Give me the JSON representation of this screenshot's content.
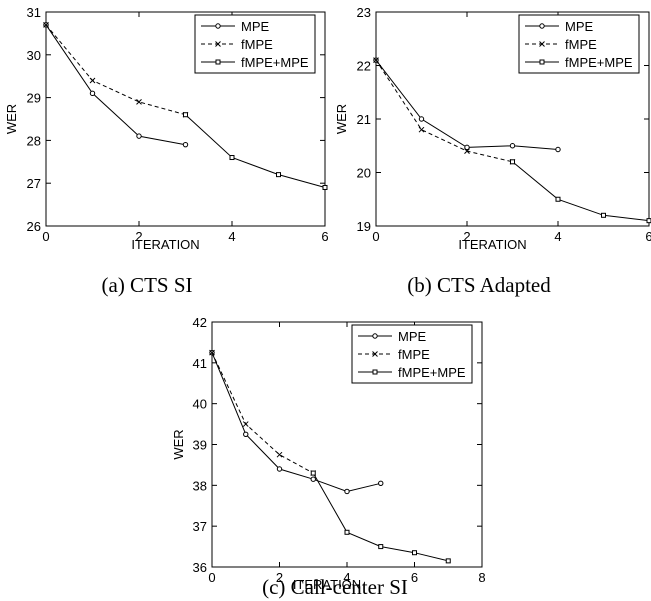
{
  "chart_data": [
    {
      "type": "line",
      "caption": "(a) CTS SI",
      "xlabel": "ITERATION",
      "ylabel": "WER",
      "xlim": [
        0,
        6
      ],
      "ylim": [
        26,
        31
      ],
      "xticks": [
        0,
        2,
        4,
        6
      ],
      "yticks": [
        26,
        27,
        28,
        29,
        30,
        31
      ],
      "legend_position": "top-right",
      "grid": false,
      "series": [
        {
          "name": "MPE",
          "style": "solid",
          "marker": "circle",
          "x": [
            0,
            1,
            2,
            3
          ],
          "y": [
            30.7,
            29.1,
            28.1,
            27.9
          ]
        },
        {
          "name": "fMPE",
          "style": "dashed",
          "marker": "x",
          "x": [
            0,
            1,
            2,
            3
          ],
          "y": [
            30.7,
            29.4,
            28.9,
            28.6
          ]
        },
        {
          "name": "fMPE+MPE",
          "style": "solid",
          "marker": "square",
          "x": [
            3,
            4,
            5,
            6
          ],
          "y": [
            28.6,
            27.6,
            27.2,
            26.9
          ]
        }
      ]
    },
    {
      "type": "line",
      "caption": "(b) CTS Adapted",
      "xlabel": "ITERATION",
      "ylabel": "WER",
      "xlim": [
        0,
        6
      ],
      "ylim": [
        19,
        23
      ],
      "xticks": [
        0,
        2,
        4,
        6
      ],
      "yticks": [
        19,
        20,
        21,
        22,
        23
      ],
      "legend_position": "top-right",
      "grid": false,
      "series": [
        {
          "name": "MPE",
          "style": "solid",
          "marker": "circle",
          "x": [
            0,
            1,
            2,
            3,
            4
          ],
          "y": [
            22.1,
            21.0,
            20.47,
            20.5,
            20.43
          ]
        },
        {
          "name": "fMPE",
          "style": "dashed",
          "marker": "x",
          "x": [
            0,
            1,
            2,
            3
          ],
          "y": [
            22.1,
            20.8,
            20.4,
            20.2
          ]
        },
        {
          "name": "fMPE+MPE",
          "style": "solid",
          "marker": "square",
          "x": [
            3,
            4,
            5,
            6
          ],
          "y": [
            20.2,
            19.5,
            19.2,
            19.1
          ]
        }
      ]
    },
    {
      "type": "line",
      "caption": "(c) Call-center SI",
      "xlabel": "ITERATION",
      "ylabel": "WER",
      "xlim": [
        0,
        8
      ],
      "ylim": [
        36,
        42
      ],
      "xticks": [
        0,
        2,
        4,
        6,
        8
      ],
      "yticks": [
        36,
        37,
        38,
        39,
        40,
        41,
        42
      ],
      "legend_position": "top-right",
      "grid": false,
      "series": [
        {
          "name": "MPE",
          "style": "solid",
          "marker": "circle",
          "x": [
            0,
            1,
            2,
            3,
            4,
            5
          ],
          "y": [
            41.25,
            39.25,
            38.4,
            38.15,
            37.85,
            38.05
          ]
        },
        {
          "name": "fMPE",
          "style": "dashed",
          "marker": "x",
          "x": [
            0,
            1,
            2,
            3
          ],
          "y": [
            41.25,
            39.5,
            38.75,
            38.3
          ]
        },
        {
          "name": "fMPE+MPE",
          "style": "solid",
          "marker": "square",
          "x": [
            3,
            4,
            5,
            6,
            7
          ],
          "y": [
            38.3,
            36.85,
            36.5,
            36.35,
            36.15
          ]
        }
      ]
    }
  ]
}
